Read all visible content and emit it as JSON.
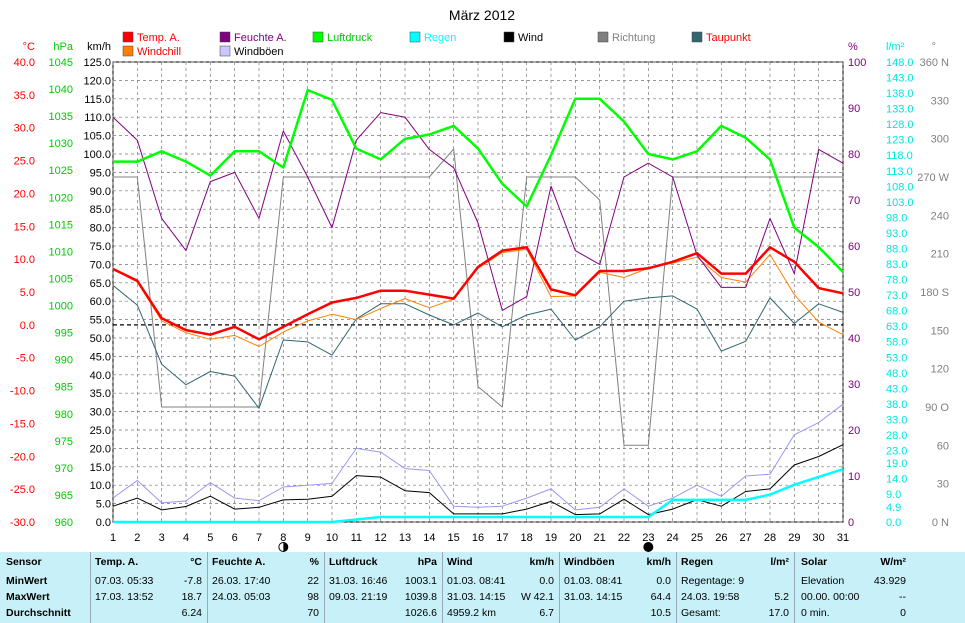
{
  "chart_data": {
    "type": "line",
    "title": "März 2012",
    "x": [
      1,
      2,
      3,
      4,
      5,
      6,
      7,
      8,
      9,
      10,
      11,
      12,
      13,
      14,
      15,
      16,
      17,
      18,
      19,
      20,
      21,
      22,
      23,
      24,
      25,
      26,
      27,
      28,
      29,
      30,
      31
    ],
    "xlim": [
      1,
      31
    ],
    "grid": true,
    "axes": [
      {
        "id": "temp",
        "unit": "°C",
        "color": "#ff0000",
        "range": [
          -30,
          40
        ],
        "ticks": [
          "-30.0",
          "-25.0",
          "-20.0",
          "-15.0",
          "-10.0",
          "-5.0",
          "0.0",
          "5.0",
          "10.0",
          "15.0",
          "20.0",
          "25.0",
          "30.0",
          "35.0",
          "40.0"
        ]
      },
      {
        "id": "pres",
        "unit": "hPa",
        "color": "#00cc00",
        "range": [
          960,
          1045
        ],
        "ticks": [
          "960",
          "965",
          "970",
          "975",
          "980",
          "985",
          "990",
          "995",
          "1000",
          "1005",
          "1010",
          "1015",
          "1020",
          "1025",
          "1030",
          "1035",
          "1040",
          "1045"
        ]
      },
      {
        "id": "wind",
        "unit": "km/h",
        "color": "#000000",
        "range": [
          0,
          125
        ],
        "ticks": [
          "0.0",
          "5.0",
          "10.0",
          "15.0",
          "20.0",
          "25.0",
          "30.0",
          "35.0",
          "40.0",
          "45.0",
          "50.0",
          "55.0",
          "60.0",
          "65.0",
          "70.0",
          "75.0",
          "80.0",
          "85.0",
          "90.0",
          "95.0",
          "100.0",
          "105.0",
          "110.0",
          "115.0",
          "120.0",
          "125.0"
        ]
      },
      {
        "id": "hum",
        "unit": "%",
        "color": "#800080",
        "range": [
          0,
          100
        ],
        "ticks": [
          "0",
          "10",
          "20",
          "30",
          "40",
          "50",
          "60",
          "70",
          "80",
          "90",
          "100"
        ]
      },
      {
        "id": "rain",
        "unit": "l/m²",
        "color": "#00e5e5",
        "range": [
          0,
          148
        ],
        "ticks": [
          "0.0",
          "4.9",
          "9.0",
          "14.0",
          "19.0",
          "23.0",
          "28.0",
          "33.0",
          "38.0",
          "43.0",
          "48.0",
          "53.0",
          "58.0",
          "63.0",
          "68.0",
          "73.0",
          "78.0",
          "83.0",
          "88.0",
          "93.0",
          "98.0",
          "103.0",
          "108.0",
          "113.0",
          "118.0",
          "123.0",
          "128.0",
          "133.0",
          "138.0",
          "143.0",
          "148.0"
        ]
      },
      {
        "id": "dir",
        "unit": "°",
        "color": "#808080",
        "range": [
          0,
          360
        ],
        "ticks": [
          "0 N",
          "30",
          "60",
          "90 O",
          "120",
          "150",
          "180 S",
          "210",
          "240",
          "270 W",
          "300",
          "330",
          "360 N"
        ]
      }
    ],
    "series": [
      {
        "name": "Temp. A.",
        "axis": "temp",
        "color": "#ff0000",
        "width": 2.5,
        "values": [
          8.5,
          6.7,
          1.0,
          -0.8,
          -1.5,
          -0.3,
          -2.2,
          -0.3,
          1.6,
          3.4,
          4.1,
          5.2,
          5.2,
          4.6,
          4.0,
          8.8,
          11.3,
          11.8,
          5.4,
          4.5,
          8.2,
          8.2,
          8.6,
          9.6,
          10.9,
          7.8,
          7.8,
          11.8,
          9.6,
          5.6,
          4.8
        ]
      },
      {
        "name": "Windchill",
        "axis": "temp",
        "color": "#ff8000",
        "width": 1,
        "values": [
          8.5,
          6.5,
          0.6,
          -1.2,
          -2.2,
          -1.6,
          -3.3,
          -1.1,
          0.6,
          1.6,
          0.8,
          2.5,
          4.0,
          2.6,
          3.9,
          8.6,
          11.0,
          11.5,
          4.3,
          4.4,
          8.0,
          7.2,
          8.6,
          9.4,
          10.3,
          7.2,
          6.5,
          10.7,
          4.6,
          0.4,
          -1.5
        ]
      },
      {
        "name": "Taupunkt",
        "axis": "temp",
        "color": "#336670",
        "width": 1,
        "values": [
          6.0,
          3.0,
          -6.0,
          -9.1,
          -7.1,
          -7.8,
          -12.7,
          -2.3,
          -2.6,
          -4.6,
          0.9,
          3.2,
          3.2,
          1.5,
          0.0,
          1.8,
          -0.3,
          1.5,
          2.4,
          -2.3,
          -0.3,
          3.6,
          4.1,
          4.4,
          2.4,
          -4.0,
          -2.5,
          4.1,
          0.2,
          3.2,
          1.9
        ]
      },
      {
        "name": "Feuchte A.",
        "axis": "hum",
        "color": "#800080",
        "width": 1,
        "values": [
          88,
          83,
          66,
          59,
          74,
          76,
          66,
          85,
          75,
          64,
          83,
          89,
          88,
          81,
          77,
          65,
          46,
          49,
          73,
          59,
          56,
          75,
          78,
          75,
          58,
          51,
          51,
          66,
          54,
          81,
          78
        ]
      },
      {
        "name": "Luftdruck",
        "axis": "pres",
        "color": "#00ff00",
        "width": 2.5,
        "values": [
          1026.6,
          1026.6,
          1028.5,
          1026.6,
          1024.0,
          1028.5,
          1028.5,
          1025.5,
          1039.8,
          1038.0,
          1029.0,
          1027.0,
          1030.8,
          1031.6,
          1033.2,
          1029.0,
          1022.5,
          1018.3,
          1027.8,
          1038.2,
          1038.2,
          1034.0,
          1028.0,
          1027.0,
          1028.5,
          1033.2,
          1031.0,
          1027.0,
          1014.4,
          1010.8,
          1006.2
        ]
      },
      {
        "name": "Regen",
        "axis": "rain",
        "color": "#00ffff",
        "width": 2.5,
        "values": [
          0,
          0,
          0,
          0,
          0,
          0,
          0,
          0,
          0,
          0,
          0.8,
          1.6,
          1.6,
          1.6,
          1.6,
          1.6,
          1.6,
          1.6,
          1.6,
          1.6,
          1.6,
          1.6,
          1.6,
          7.1,
          7.1,
          7.1,
          7.1,
          8.8,
          12.0,
          14.5,
          17.0
        ]
      },
      {
        "name": "Wind",
        "axis": "wind",
        "color": "#000000",
        "width": 1,
        "values": [
          4.3,
          6.5,
          3.3,
          4.2,
          7.0,
          3.5,
          4.0,
          6.0,
          6.2,
          7.0,
          12.6,
          12.2,
          8.5,
          8.0,
          2.2,
          2.2,
          2.2,
          3.5,
          5.6,
          2.0,
          2.2,
          6.2,
          2.0,
          3.5,
          6.1,
          4.3,
          8.3,
          9.0,
          15.5,
          17.8,
          21.0
        ]
      },
      {
        "name": "Windböen",
        "axis": "wind",
        "color": "#9898f0",
        "width": 1,
        "values": [
          6.5,
          11.3,
          5.2,
          5.7,
          10.7,
          6.5,
          5.8,
          9.5,
          10.0,
          10.5,
          20.0,
          19.0,
          14.5,
          14.0,
          4.3,
          4.0,
          4.3,
          6.5,
          9.0,
          3.3,
          4.0,
          9.0,
          4.3,
          6.5,
          10.0,
          7.0,
          12.5,
          13.0,
          23.7,
          27.0,
          32.0
        ]
      },
      {
        "name": "Richtung",
        "axis": "dir",
        "color": "#808080",
        "width": 1,
        "values": [
          270,
          270,
          90,
          90,
          90,
          90,
          90,
          270,
          270,
          270,
          270,
          270,
          270,
          270,
          292,
          106,
          90,
          270,
          270,
          270,
          252,
          60,
          60,
          270,
          270,
          270,
          270,
          270,
          270,
          270,
          270
        ]
      }
    ]
  },
  "legend": {
    "items": [
      {
        "label": "Temp. A.",
        "color": "#ff0000",
        "text_color": "#ff0000"
      },
      {
        "label": "Windchill",
        "color": "#ff8000",
        "text_color": "#ff0000"
      },
      {
        "label": "Feuchte A.",
        "color": "#800080",
        "text_color": "#800080"
      },
      {
        "label": "Windböen",
        "color": "#c8c8ff",
        "text_color": "#000000"
      },
      {
        "label": "Luftdruck",
        "color": "#00ff00",
        "text_color": "#00cc00"
      },
      {
        "label": "Regen",
        "color": "#00ffff",
        "text_color": "#00ffff"
      },
      {
        "label": "Wind",
        "color": "#000000",
        "text_color": "#000000"
      },
      {
        "label": "Richtung",
        "color": "#808080",
        "text_color": "#808080"
      },
      {
        "label": "Taupunkt",
        "color": "#336670",
        "text_color": "#ff0000"
      }
    ]
  },
  "moon_phases": [
    {
      "day": 8,
      "symbol": "first-quarter-moon"
    },
    {
      "day": 23,
      "symbol": "new-moon"
    }
  ],
  "stats": {
    "row_labels": [
      "Sensor",
      "MinWert",
      "MaxWert",
      "Durchschnitt"
    ],
    "temp": {
      "title": "Temp. A.",
      "unit": "°C",
      "min_time": "07.03.  05:33",
      "min": "-7.8",
      "max_time": "17.03.  13:52",
      "max": "18.7",
      "avg": "6.24"
    },
    "hum": {
      "title": "Feuchte A.",
      "unit": "%",
      "min_time": "26.03.  17:40",
      "min": "22",
      "max_time": "24.03.  05:03",
      "max": "98",
      "avg": "70"
    },
    "pres": {
      "title": "Luftdruck",
      "unit": "hPa",
      "min_time": "31.03.  16:46",
      "min": "1003.1",
      "max_time": "09.03.  21:19",
      "max": "1039.8",
      "avg": "1026.6"
    },
    "wind": {
      "title": "Wind",
      "unit": "km/h",
      "min_time": "01.03.  08:41",
      "min": "0.0",
      "max_time": "31.03.  14:15",
      "max_dir": "W",
      "max": "42.1",
      "avg_label": "4959.2 km",
      "avg": "6.7"
    },
    "gust": {
      "title": "Windböen",
      "unit": "km/h",
      "min_time": "01.03.  08:41",
      "min": "0.0",
      "max_time": "31.03.  14:15",
      "max": "64.4",
      "avg": "10.5"
    },
    "rain": {
      "title": "Regen",
      "unit": "l/m²",
      "days_label": "Regentage: 9",
      "max_time": "24.03.  19:58",
      "max": "5.2",
      "total_label": "Gesamt:",
      "total": "17.0"
    },
    "solar": {
      "title": "Solar",
      "unit": "W/m²",
      "elev_label": "Elevation",
      "elev": "43.929",
      "max_time": "00.00.  00:00",
      "max": "--",
      "avg_label": "0 min.",
      "avg": "0"
    }
  }
}
